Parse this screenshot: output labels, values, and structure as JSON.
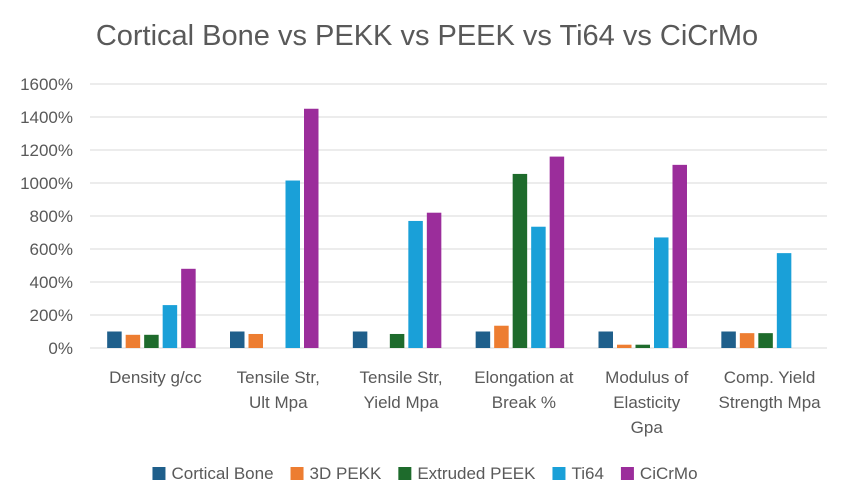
{
  "chart_data": {
    "type": "bar",
    "title": "Cortical Bone vs PEKK vs PEEK vs Ti64 vs CiCrMo",
    "xlabel": "",
    "ylabel": "",
    "ylim": [
      0,
      1600
    ],
    "yticks": [
      0,
      200,
      400,
      600,
      800,
      1000,
      1200,
      1400,
      1600
    ],
    "ytick_labels": [
      "0%",
      "200%",
      "400%",
      "600%",
      "800%",
      "1000%",
      "1200%",
      "1400%",
      "1600%"
    ],
    "grid": true,
    "legend_position": "bottom",
    "categories": [
      [
        "Density  g/cc"
      ],
      [
        "Tensile Str,",
        "Ult  Mpa"
      ],
      [
        "Tensile Str,",
        "Yield  Mpa"
      ],
      [
        "Elongation at",
        "Break  %"
      ],
      [
        "Modulus of",
        "Elasticity",
        "Gpa"
      ],
      [
        "Comp. Yield",
        "Strength  Mpa"
      ]
    ],
    "series": [
      {
        "name": "Cortical Bone",
        "color": "#1F5F8B",
        "values": [
          100,
          100,
          100,
          100,
          100,
          100
        ]
      },
      {
        "name": "3D PEKK",
        "color": "#ED7D31",
        "values": [
          80,
          85,
          0,
          135,
          20,
          90
        ]
      },
      {
        "name": "Extruded PEEK",
        "color": "#1E6B2C",
        "values": [
          80,
          0,
          85,
          1055,
          20,
          90
        ]
      },
      {
        "name": "Ti64",
        "color": "#1AA0D8",
        "values": [
          260,
          1015,
          770,
          735,
          670,
          575
        ]
      },
      {
        "name": "CiCrMo",
        "color": "#9B2D9B",
        "values": [
          480,
          1450,
          820,
          1160,
          1110,
          0
        ]
      }
    ]
  }
}
